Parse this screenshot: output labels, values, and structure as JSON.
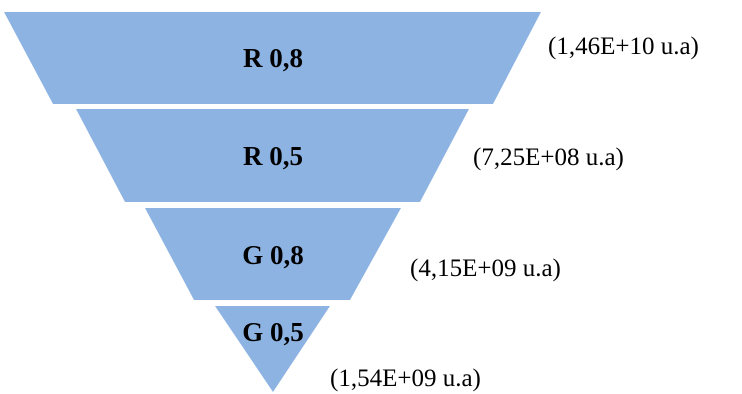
{
  "funnel": {
    "fill_color": "#8DB3E2",
    "separator_color": "#FFFFFF",
    "layers": [
      {
        "label": "R 0,8",
        "value": "(1,46E+10 u.a)"
      },
      {
        "label": "R 0,5",
        "value": "(7,25E+08 u.a)"
      },
      {
        "label": "G 0,8",
        "value": "(4,15E+09 u.a)"
      },
      {
        "label": "G 0,5",
        "value": "(1,54E+09 u.a)"
      }
    ]
  }
}
